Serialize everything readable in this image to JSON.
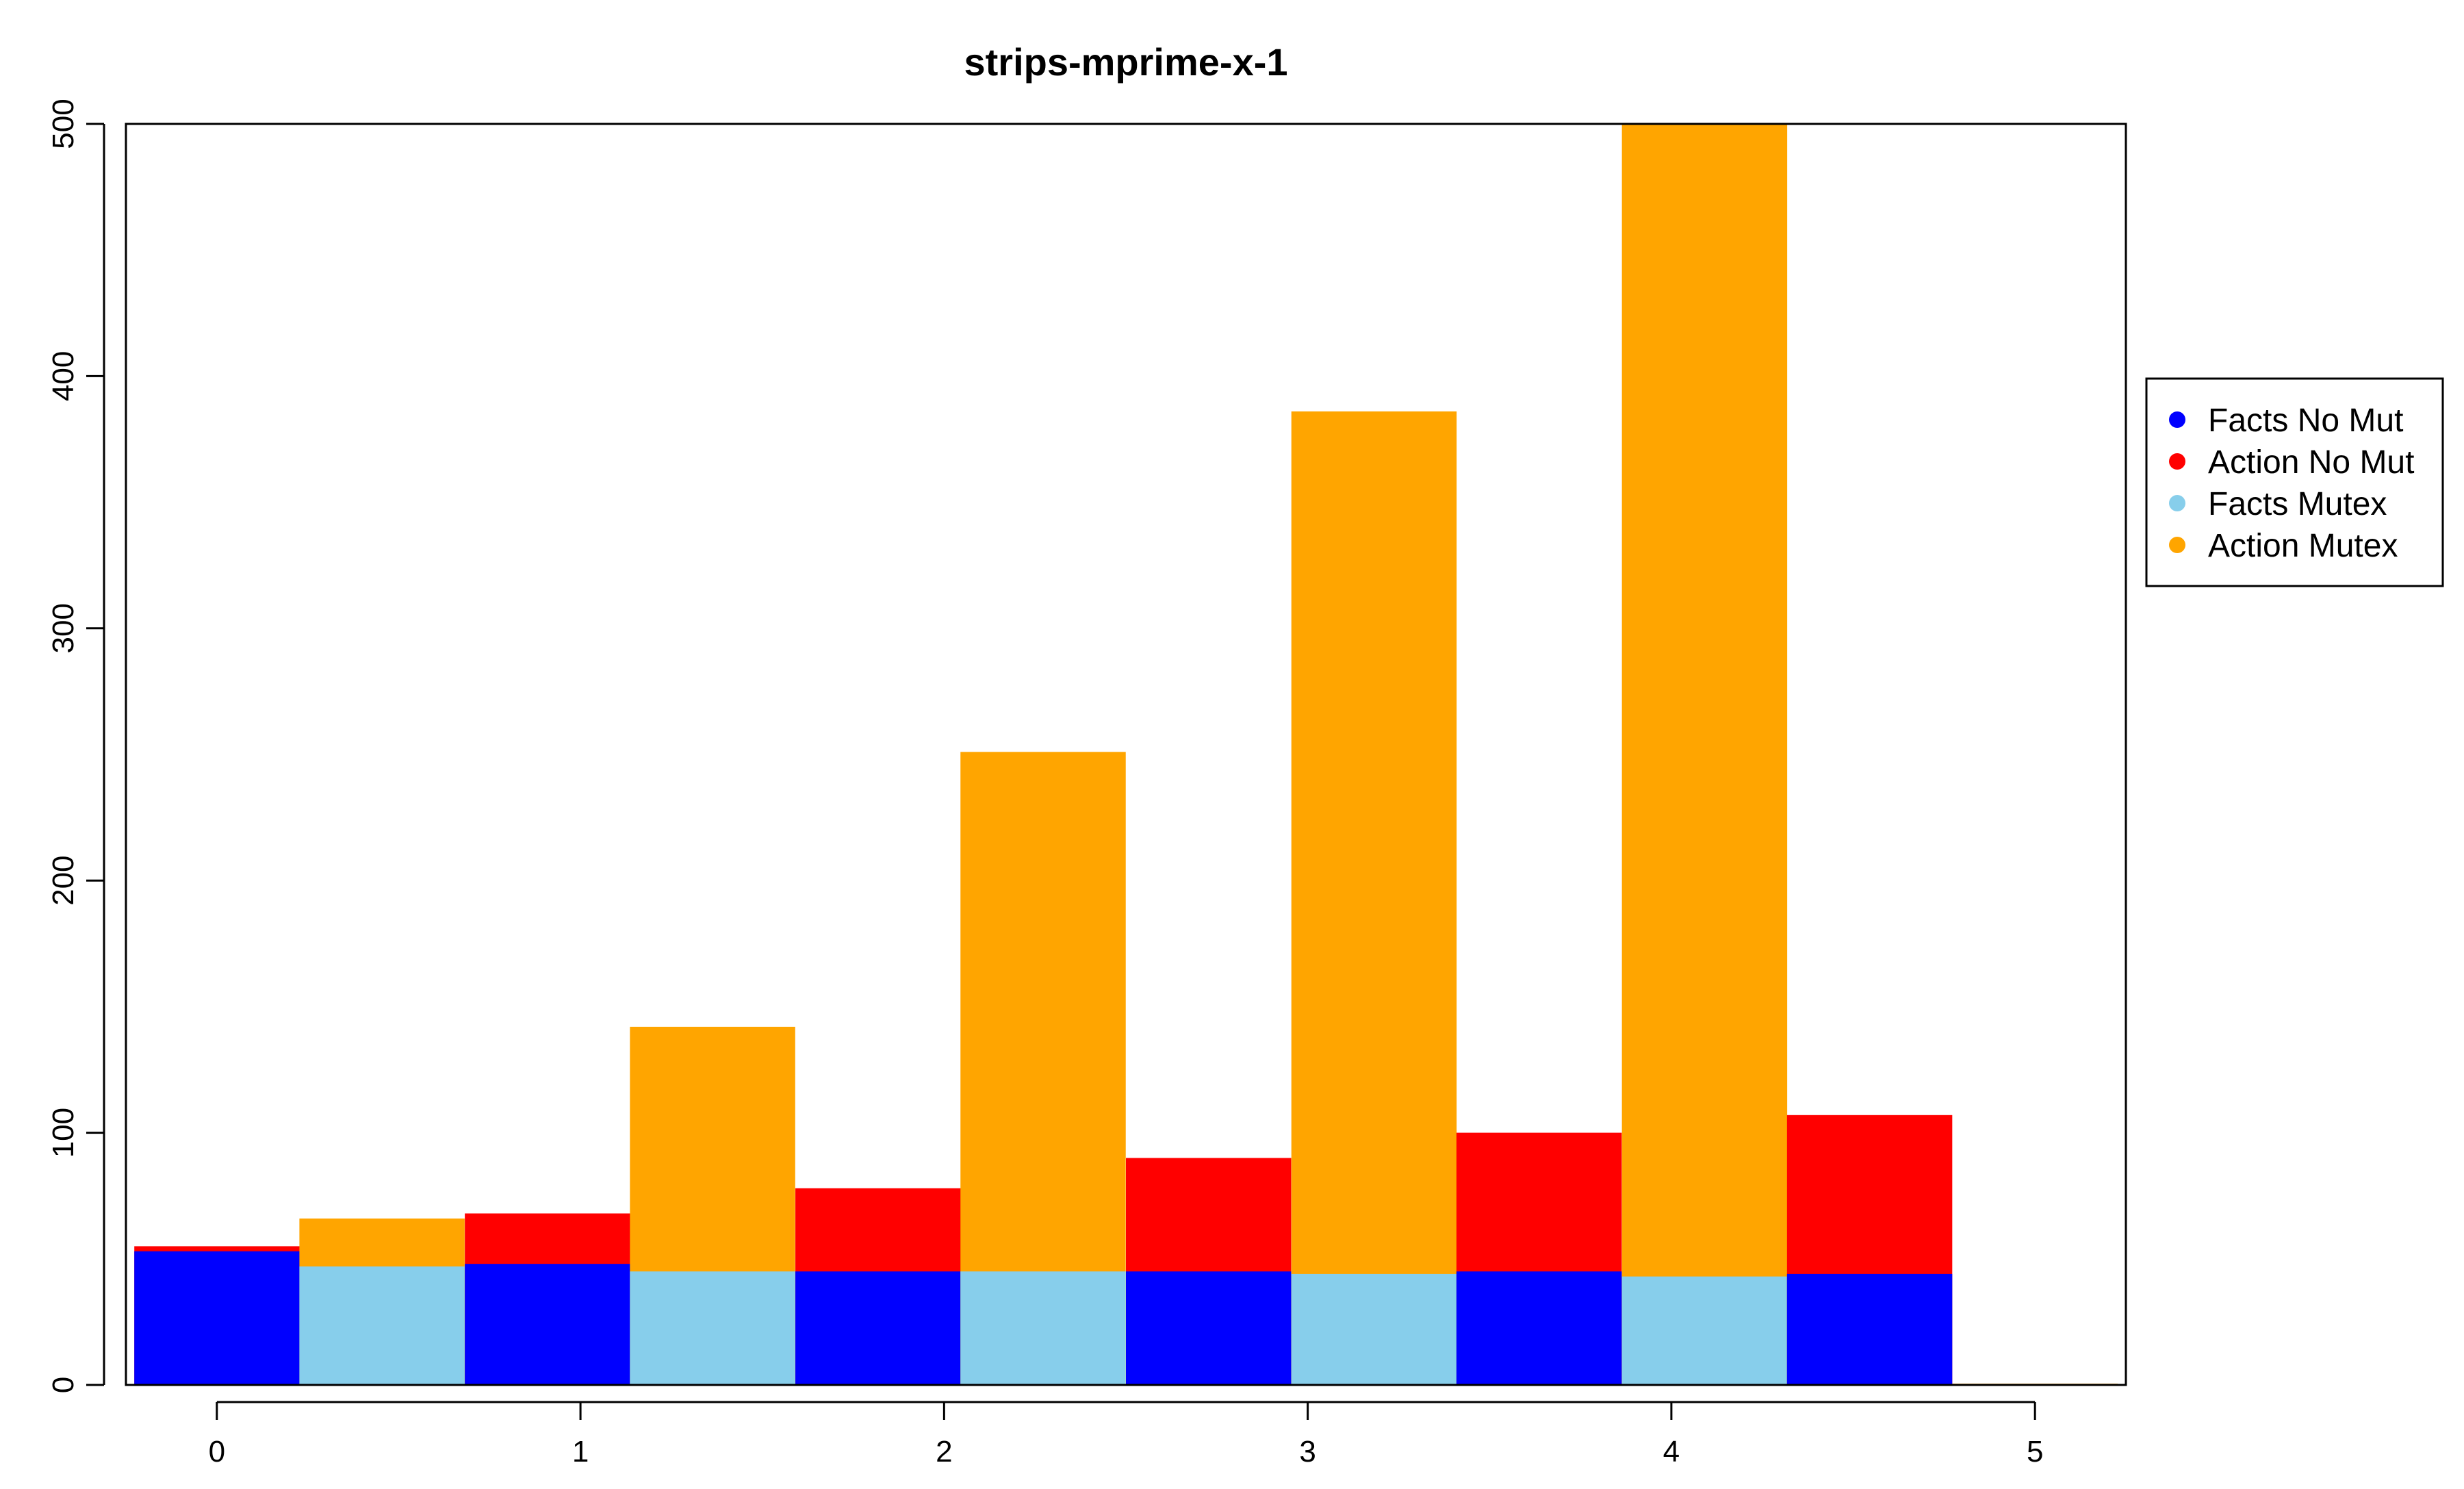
{
  "chart_data": {
    "type": "bar",
    "title": "strips-mprime-x-1",
    "xlabel": "",
    "ylabel": "",
    "xlim": [
      -0.25,
      5.25
    ],
    "ylim": [
      0,
      500
    ],
    "x_ticks": [
      0,
      1,
      2,
      3,
      4,
      5
    ],
    "y_ticks": [
      0,
      100,
      200,
      300,
      400,
      500
    ],
    "legend_position": "right",
    "legend": [
      {
        "label": "Facts No Mut",
        "color": "#0000FF"
      },
      {
        "label": "Action No Mut",
        "color": "#FF0000"
      },
      {
        "label": "Facts Mutex",
        "color": "#87CEEB"
      },
      {
        "label": "Action Mutex",
        "color": "#FFA500"
      }
    ],
    "bin_width": 0.4545,
    "bars": [
      {
        "x_start": -0.227,
        "fact_series": "Facts No Mut",
        "fact_value": 53,
        "action_series": "Action No Mut",
        "action_value": 55
      },
      {
        "x_start": 0.227,
        "fact_series": "Facts Mutex",
        "fact_value": 47,
        "action_series": "Action Mutex",
        "action_value": 66
      },
      {
        "x_start": 0.682,
        "fact_series": "Facts No Mut",
        "fact_value": 48,
        "action_series": "Action No Mut",
        "action_value": 68
      },
      {
        "x_start": 1.136,
        "fact_series": "Facts Mutex",
        "fact_value": 45,
        "action_series": "Action Mutex",
        "action_value": 142
      },
      {
        "x_start": 1.591,
        "fact_series": "Facts No Mut",
        "fact_value": 45,
        "action_series": "Action No Mut",
        "action_value": 78
      },
      {
        "x_start": 2.045,
        "fact_series": "Facts Mutex",
        "fact_value": 45,
        "action_series": "Action Mutex",
        "action_value": 251
      },
      {
        "x_start": 2.5,
        "fact_series": "Facts No Mut",
        "fact_value": 45,
        "action_series": "Action No Mut",
        "action_value": 90
      },
      {
        "x_start": 2.955,
        "fact_series": "Facts Mutex",
        "fact_value": 44,
        "action_series": "Action Mutex",
        "action_value": 386
      },
      {
        "x_start": 3.409,
        "fact_series": "Facts No Mut",
        "fact_value": 45,
        "action_series": "Action No Mut",
        "action_value": 100
      },
      {
        "x_start": 3.864,
        "fact_series": "Facts Mutex",
        "fact_value": 43,
        "action_series": "Action Mutex",
        "action_value": 500
      },
      {
        "x_start": 4.318,
        "fact_series": "Facts No Mut",
        "fact_value": 44,
        "action_series": "Action No Mut",
        "action_value": 107
      },
      {
        "x_start": 4.773,
        "fact_series": "Facts Mutex",
        "fact_value": 0,
        "action_series": "Action Mutex",
        "action_value": 0.5
      }
    ]
  }
}
